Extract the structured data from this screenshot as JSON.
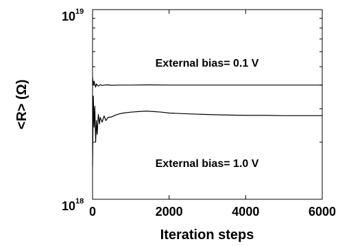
{
  "chart_data": {
    "type": "line",
    "xlabel": "Iteration steps",
    "ylabel": "<R> (Ω)",
    "xlim": [
      0,
      6000
    ],
    "ylim": [
      1e+18,
      1e+19
    ],
    "yscale": "log",
    "xticks": [
      0,
      2000,
      4000,
      6000
    ],
    "xtick_labels": [
      "0",
      "2000",
      "4000",
      "6000"
    ],
    "yticks": [
      {
        "base": "10",
        "exponent": "18",
        "value": 1e+18
      },
      {
        "base": "10",
        "exponent": "19",
        "value": 1e+19
      }
    ],
    "grid": false,
    "legend": "none",
    "line_color": "#000000",
    "series": [
      {
        "label": "External bias= 0.1 V",
        "x": [
          0,
          20,
          40,
          60,
          80,
          100,
          150,
          200,
          250,
          300,
          400,
          500,
          700,
          1000,
          1500,
          2000,
          3000,
          4000,
          5000,
          6000
        ],
        "y": [
          4.4e+18,
          4e+18,
          4.2e+18,
          4.05e+18,
          3.9e+18,
          4.05e+18,
          3.95e+18,
          4.02e+18,
          3.98e+18,
          4e+18,
          4.01e+18,
          3.99e+18,
          4e+18,
          4e+18,
          4.01e+18,
          4e+18,
          4e+18,
          4e+18,
          4e+18,
          4e+18
        ]
      },
      {
        "label": "External bias= 1.0 V",
        "x": [
          0,
          20,
          40,
          60,
          80,
          100,
          120,
          150,
          180,
          200,
          250,
          300,
          350,
          400,
          500,
          600,
          700,
          800,
          1000,
          1200,
          1400,
          1600,
          1800,
          2000,
          2500,
          3000,
          3500,
          4000,
          4500,
          5000,
          5500,
          6000
        ],
        "y": [
          1.5e+18,
          3.5e+18,
          2.4e+18,
          3.1e+18,
          2e+18,
          2.6e+18,
          2.2e+18,
          2.8e+18,
          2.5e+18,
          2.7e+18,
          2.55e+18,
          2.75e+18,
          2.6e+18,
          2.7e+18,
          2.72e+18,
          2.78e+18,
          2.82e+18,
          2.85e+18,
          2.88e+18,
          2.9e+18,
          2.92e+18,
          2.9e+18,
          2.88e+18,
          2.85e+18,
          2.82e+18,
          2.8e+18,
          2.78e+18,
          2.77e+18,
          2.77e+18,
          2.76e+18,
          2.76e+18,
          2.76e+18
        ]
      }
    ]
  }
}
